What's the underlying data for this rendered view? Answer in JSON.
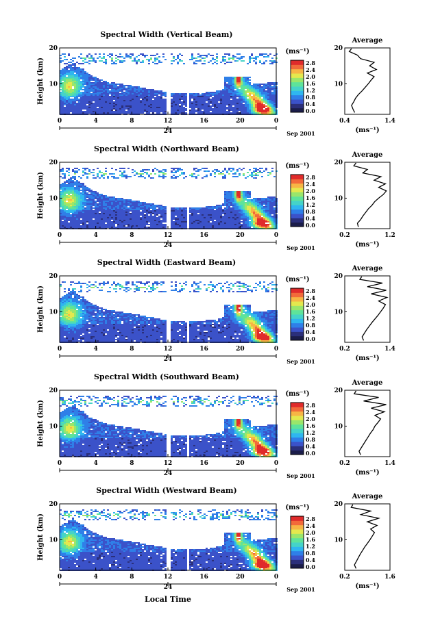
{
  "figure": {
    "xlabel_bottom": "Local Time",
    "date_label": "Sep 2001",
    "day_label": "24",
    "unit_label": "(ms⁻¹)",
    "avg_title": "Average",
    "avg_xlabel": "(ms⁻¹)"
  },
  "colors": {
    "scale": [
      "#2b2f7a",
      "#3b52c9",
      "#2f7fe8",
      "#2fb6ef",
      "#45d3c8",
      "#5ee39a",
      "#9ae66b",
      "#e4e84e",
      "#f7b545",
      "#f26a3a",
      "#e02b2b"
    ]
  },
  "chart_data": [
    {
      "type": "heatmap",
      "title": "Spectral Width (Vertical Beam)",
      "ylabel": "Height (km)",
      "xticks": [
        "0",
        "4",
        "8",
        "12",
        "16",
        "20",
        "0"
      ],
      "yticks": [
        "20",
        "10"
      ],
      "xlim": [
        0,
        24
      ],
      "ylim": [
        1.5,
        20
      ],
      "colorbar_ticks": [
        "2.8",
        "2.4",
        "2.0",
        "1.6",
        "1.2",
        "0.8",
        "0.4",
        "0.0"
      ],
      "average": {
        "xticks": [
          "0.4",
          "1.4"
        ],
        "xlim": [
          0.4,
          1.4
        ],
        "yticks": [
          "20",
          "10"
        ],
        "profile": [
          [
            0.62,
            2
          ],
          [
            0.58,
            3
          ],
          [
            0.55,
            4
          ],
          [
            0.6,
            5
          ],
          [
            0.64,
            6
          ],
          [
            0.7,
            7
          ],
          [
            0.78,
            8
          ],
          [
            0.85,
            9
          ],
          [
            0.92,
            10
          ],
          [
            0.98,
            11
          ],
          [
            1.05,
            12
          ],
          [
            0.9,
            13
          ],
          [
            1.1,
            14
          ],
          [
            0.95,
            15
          ],
          [
            1.05,
            16
          ],
          [
            0.75,
            17
          ],
          [
            0.68,
            18
          ],
          [
            0.5,
            19
          ],
          [
            0.55,
            19.8
          ]
        ]
      }
    },
    {
      "type": "heatmap",
      "title": "Spectral Width (Northward Beam)",
      "ylabel": "Height (km)",
      "xticks": [
        "0",
        "4",
        "8",
        "12",
        "16",
        "20",
        "0"
      ],
      "yticks": [
        "20",
        "10"
      ],
      "xlim": [
        0,
        24
      ],
      "ylim": [
        1.5,
        20
      ],
      "colorbar_ticks": [
        "2.8",
        "2.4",
        "2.0",
        "1.6",
        "1.2",
        "0.8",
        "0.4",
        "0.0"
      ],
      "average": {
        "xticks": [
          "0.2",
          "1.2"
        ],
        "xlim": [
          0.2,
          1.2
        ],
        "yticks": [
          "20",
          "10"
        ],
        "profile": [
          [
            0.5,
            2
          ],
          [
            0.48,
            3
          ],
          [
            0.55,
            4
          ],
          [
            0.6,
            5
          ],
          [
            0.66,
            6
          ],
          [
            0.72,
            7
          ],
          [
            0.8,
            8
          ],
          [
            0.86,
            9
          ],
          [
            0.95,
            10
          ],
          [
            1.05,
            11
          ],
          [
            1.12,
            12
          ],
          [
            0.95,
            13
          ],
          [
            1.1,
            14
          ],
          [
            0.85,
            15
          ],
          [
            1.0,
            16
          ],
          [
            0.6,
            17
          ],
          [
            0.7,
            18
          ],
          [
            0.4,
            19
          ],
          [
            0.45,
            19.8
          ]
        ]
      }
    },
    {
      "type": "heatmap",
      "title": "Spectral Width (Eastward Beam)",
      "ylabel": "Height (km)",
      "xticks": [
        "0",
        "4",
        "8",
        "12",
        "16",
        "20",
        "0"
      ],
      "yticks": [
        "20",
        "10"
      ],
      "xlim": [
        0,
        24
      ],
      "ylim": [
        1.5,
        20
      ],
      "colorbar_ticks": [
        "2.8",
        "2.4",
        "2.0",
        "1.6",
        "1.2",
        "0.8",
        "0.4",
        "0.0"
      ],
      "average": {
        "xticks": [
          "0.2",
          "1.4"
        ],
        "xlim": [
          0.2,
          1.4
        ],
        "yticks": [
          "20",
          "10"
        ],
        "profile": [
          [
            0.7,
            2
          ],
          [
            0.66,
            3
          ],
          [
            0.72,
            4
          ],
          [
            0.78,
            5
          ],
          [
            0.85,
            6
          ],
          [
            0.92,
            7
          ],
          [
            1.0,
            8
          ],
          [
            1.08,
            9
          ],
          [
            1.15,
            10
          ],
          [
            1.22,
            11
          ],
          [
            1.28,
            12
          ],
          [
            1.1,
            13
          ],
          [
            1.32,
            14
          ],
          [
            0.9,
            15
          ],
          [
            1.3,
            16
          ],
          [
            0.8,
            17
          ],
          [
            1.2,
            18
          ],
          [
            0.6,
            19
          ],
          [
            0.65,
            19.8
          ]
        ]
      }
    },
    {
      "type": "heatmap",
      "title": "Spectral Width (Southward Beam)",
      "ylabel": "Height (km)",
      "xticks": [
        "0",
        "4",
        "8",
        "12",
        "16",
        "20",
        "0"
      ],
      "yticks": [
        "20",
        "10"
      ],
      "xlim": [
        0,
        24
      ],
      "ylim": [
        1.5,
        20
      ],
      "colorbar_ticks": [
        "2.8",
        "2.4",
        "2.0",
        "1.6",
        "1.2",
        "0.8",
        "0.4",
        "0.0"
      ],
      "average": {
        "xticks": [
          "0.2",
          "1.4"
        ],
        "xlim": [
          0.2,
          1.4
        ],
        "yticks": [
          "20",
          "10"
        ],
        "profile": [
          [
            0.62,
            2
          ],
          [
            0.58,
            3
          ],
          [
            0.64,
            4
          ],
          [
            0.7,
            5
          ],
          [
            0.76,
            6
          ],
          [
            0.82,
            7
          ],
          [
            0.88,
            8
          ],
          [
            0.95,
            9
          ],
          [
            1.0,
            10
          ],
          [
            1.08,
            11
          ],
          [
            1.15,
            12
          ],
          [
            1.0,
            13
          ],
          [
            1.25,
            14
          ],
          [
            0.9,
            15
          ],
          [
            1.3,
            16
          ],
          [
            0.7,
            17
          ],
          [
            1.1,
            18
          ],
          [
            0.45,
            19
          ],
          [
            0.5,
            19.8
          ]
        ]
      }
    },
    {
      "type": "heatmap",
      "title": "Spectral Width (Westward Beam)",
      "ylabel": "Height (km)",
      "xticks": [
        "0",
        "4",
        "8",
        "12",
        "16",
        "20",
        "0"
      ],
      "yticks": [
        "20",
        "10"
      ],
      "xlim": [
        0,
        24
      ],
      "ylim": [
        1.5,
        20
      ],
      "colorbar_ticks": [
        "2.8",
        "2.4",
        "2.0",
        "1.6",
        "1.2",
        "0.8",
        "0.4",
        "0.0"
      ],
      "average": {
        "xticks": [
          "0.2",
          "1.6"
        ],
        "xlim": [
          0.2,
          1.6
        ],
        "yticks": [
          "20",
          "10"
        ],
        "profile": [
          [
            0.55,
            2
          ],
          [
            0.5,
            3
          ],
          [
            0.56,
            4
          ],
          [
            0.62,
            5
          ],
          [
            0.68,
            6
          ],
          [
            0.75,
            7
          ],
          [
            0.82,
            8
          ],
          [
            0.9,
            9
          ],
          [
            0.98,
            10
          ],
          [
            1.05,
            11
          ],
          [
            1.12,
            12
          ],
          [
            1.0,
            13
          ],
          [
            1.2,
            14
          ],
          [
            0.9,
            15
          ],
          [
            1.25,
            16
          ],
          [
            0.7,
            17
          ],
          [
            1.0,
            18
          ],
          [
            0.4,
            19
          ],
          [
            0.45,
            19.8
          ]
        ]
      }
    }
  ]
}
